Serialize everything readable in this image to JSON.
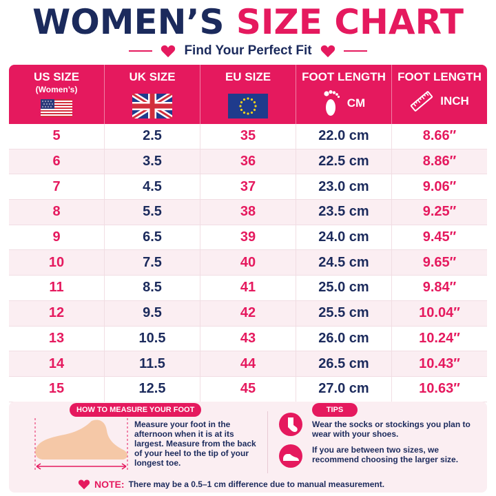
{
  "title": {
    "part1": "WOMEN’S",
    "part2": "SIZE CHART"
  },
  "subtitle": "Find Your Perfect Fit",
  "colors": {
    "navy": "#1b2a5c",
    "pink": "#e5195e",
    "row_alt": "#fbeef2"
  },
  "headers": [
    {
      "line1": "US SIZE",
      "line2": "(Women’s)",
      "icon": "us-flag-icon",
      "unit": ""
    },
    {
      "line1": "UK SIZE",
      "line2": "",
      "icon": "uk-flag-icon",
      "unit": ""
    },
    {
      "line1": "EU SIZE",
      "line2": "",
      "icon": "eu-flag-icon",
      "unit": ""
    },
    {
      "line1": "FOOT LENGTH",
      "line2": "",
      "icon": "footprint-icon",
      "unit": "CM"
    },
    {
      "line1": "FOOT LENGTH",
      "line2": "",
      "icon": "ruler-icon",
      "unit": "INCH"
    }
  ],
  "rows": [
    [
      "5",
      "2.5",
      "35",
      "22.0 cm",
      "8.66″"
    ],
    [
      "6",
      "3.5",
      "36",
      "22.5 cm",
      "8.86″"
    ],
    [
      "7",
      "4.5",
      "37",
      "23.0 cm",
      "9.06″"
    ],
    [
      "8",
      "5.5",
      "38",
      "23.5 cm",
      "9.25″"
    ],
    [
      "9",
      "6.5",
      "39",
      "24.0 cm",
      "9.45″"
    ],
    [
      "10",
      "7.5",
      "40",
      "24.5 cm",
      "9.65″"
    ],
    [
      "11",
      "8.5",
      "41",
      "25.0 cm",
      "9.84″"
    ],
    [
      "12",
      "9.5",
      "42",
      "25.5 cm",
      "10.04″"
    ],
    [
      "13",
      "10.5",
      "43",
      "26.0 cm",
      "10.24″"
    ],
    [
      "14",
      "11.5",
      "44",
      "26.5 cm",
      "10.43″"
    ],
    [
      "15",
      "12.5",
      "45",
      "27.0 cm",
      "10.63″"
    ]
  ],
  "measure": {
    "badge": "HOW TO MEASURE YOUR FOOT",
    "text": "Measure your foot in the afternoon when it is at its largest. Measure from the back of your heel to the tip of your longest toe."
  },
  "tips": {
    "badge": "TIPS",
    "tip1": "Wear the socks or stockings you plan to wear with your shoes.",
    "tip2": "If you are between two sizes, we recommend choosing the larger size."
  },
  "note": {
    "label": "NOTE:",
    "text": "There may be a 0.5–1 cm difference due to manual measurement."
  }
}
